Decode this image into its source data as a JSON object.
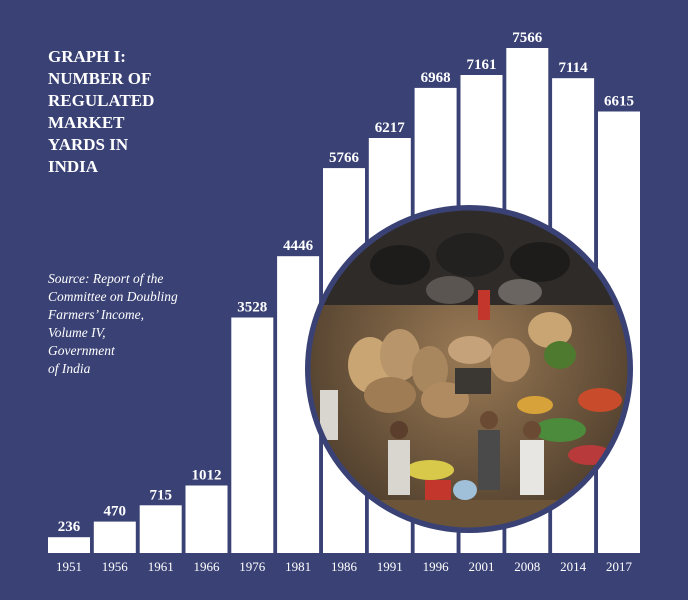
{
  "title_lines": [
    "GRAPH I:",
    "NUMBER OF",
    "REGULATED",
    "MARKET",
    "YARDS IN",
    "INDIA"
  ],
  "source_lines": [
    "Source: Report of the",
    "Committee on Doubling",
    "Farmers’ Income,",
    "Volume IV,",
    "Government",
    "of India"
  ],
  "colors": {
    "background": "#3a4275",
    "bar": "#ffffff",
    "text": "#ffffff"
  },
  "photo": {
    "description": "market-yard-photo"
  },
  "chart_data": {
    "type": "bar",
    "categories": [
      "1951",
      "1956",
      "1961",
      "1966",
      "1976",
      "1981",
      "1986",
      "1991",
      "1996",
      "2001",
      "2008",
      "2014",
      "2017"
    ],
    "values": [
      236,
      470,
      715,
      1012,
      3528,
      4446,
      5766,
      6217,
      6968,
      7161,
      7566,
      7114,
      6615
    ],
    "title": "GRAPH I: NUMBER OF REGULATED MARKET YARDS IN INDIA",
    "xlabel": "",
    "ylabel": "",
    "ylim": [
      0,
      7566
    ],
    "grid": false,
    "legend": "none"
  }
}
